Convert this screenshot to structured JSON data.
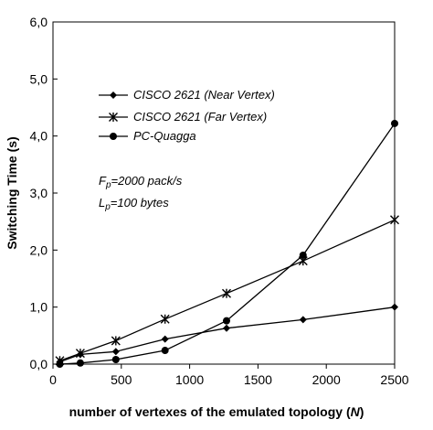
{
  "chart_data": {
    "type": "line",
    "xlabel": "number of vertexes of the emulated topology",
    "xlabel_var": "N",
    "ylabel": "Switching Time (s)",
    "xlim": [
      0,
      2500
    ],
    "ylim": [
      0,
      6
    ],
    "x_ticks": [
      0,
      500,
      1000,
      1500,
      2000,
      2500
    ],
    "x_tick_labels": [
      "0",
      "500",
      "1000",
      "1500",
      "2000",
      "2500"
    ],
    "y_ticks": [
      0,
      1,
      2,
      3,
      4,
      5,
      6
    ],
    "y_tick_labels": [
      "0,0",
      "1,0",
      "2,0",
      "3,0",
      "4,0",
      "5,0",
      "6,0"
    ],
    "grid": false,
    "legend_position": "top-left",
    "series": [
      {
        "name": "CISCO 2621 (Near Vertex)",
        "marker": "diamond",
        "x": [
          50,
          200,
          460,
          820,
          1270,
          1830,
          2500
        ],
        "y": [
          0.04,
          0.17,
          0.22,
          0.44,
          0.63,
          0.78,
          1.0
        ]
      },
      {
        "name": "CISCO 2621 (Far Vertex)",
        "marker": "star",
        "x": [
          50,
          200,
          460,
          820,
          1270,
          1830,
          2500
        ],
        "y": [
          0.06,
          0.19,
          0.41,
          0.79,
          1.24,
          1.81,
          2.53
        ]
      },
      {
        "name": "PC-Quagga",
        "marker": "circle",
        "x": [
          50,
          200,
          460,
          820,
          1270,
          1830,
          2500
        ],
        "y": [
          0.0,
          0.02,
          0.08,
          0.24,
          0.76,
          1.91,
          4.22
        ]
      }
    ],
    "annotations": [
      {
        "var": "F",
        "sub": "p",
        "text": "=2000 pack/s"
      },
      {
        "var": "L",
        "sub": "p",
        "text": "=100 bytes"
      }
    ]
  }
}
